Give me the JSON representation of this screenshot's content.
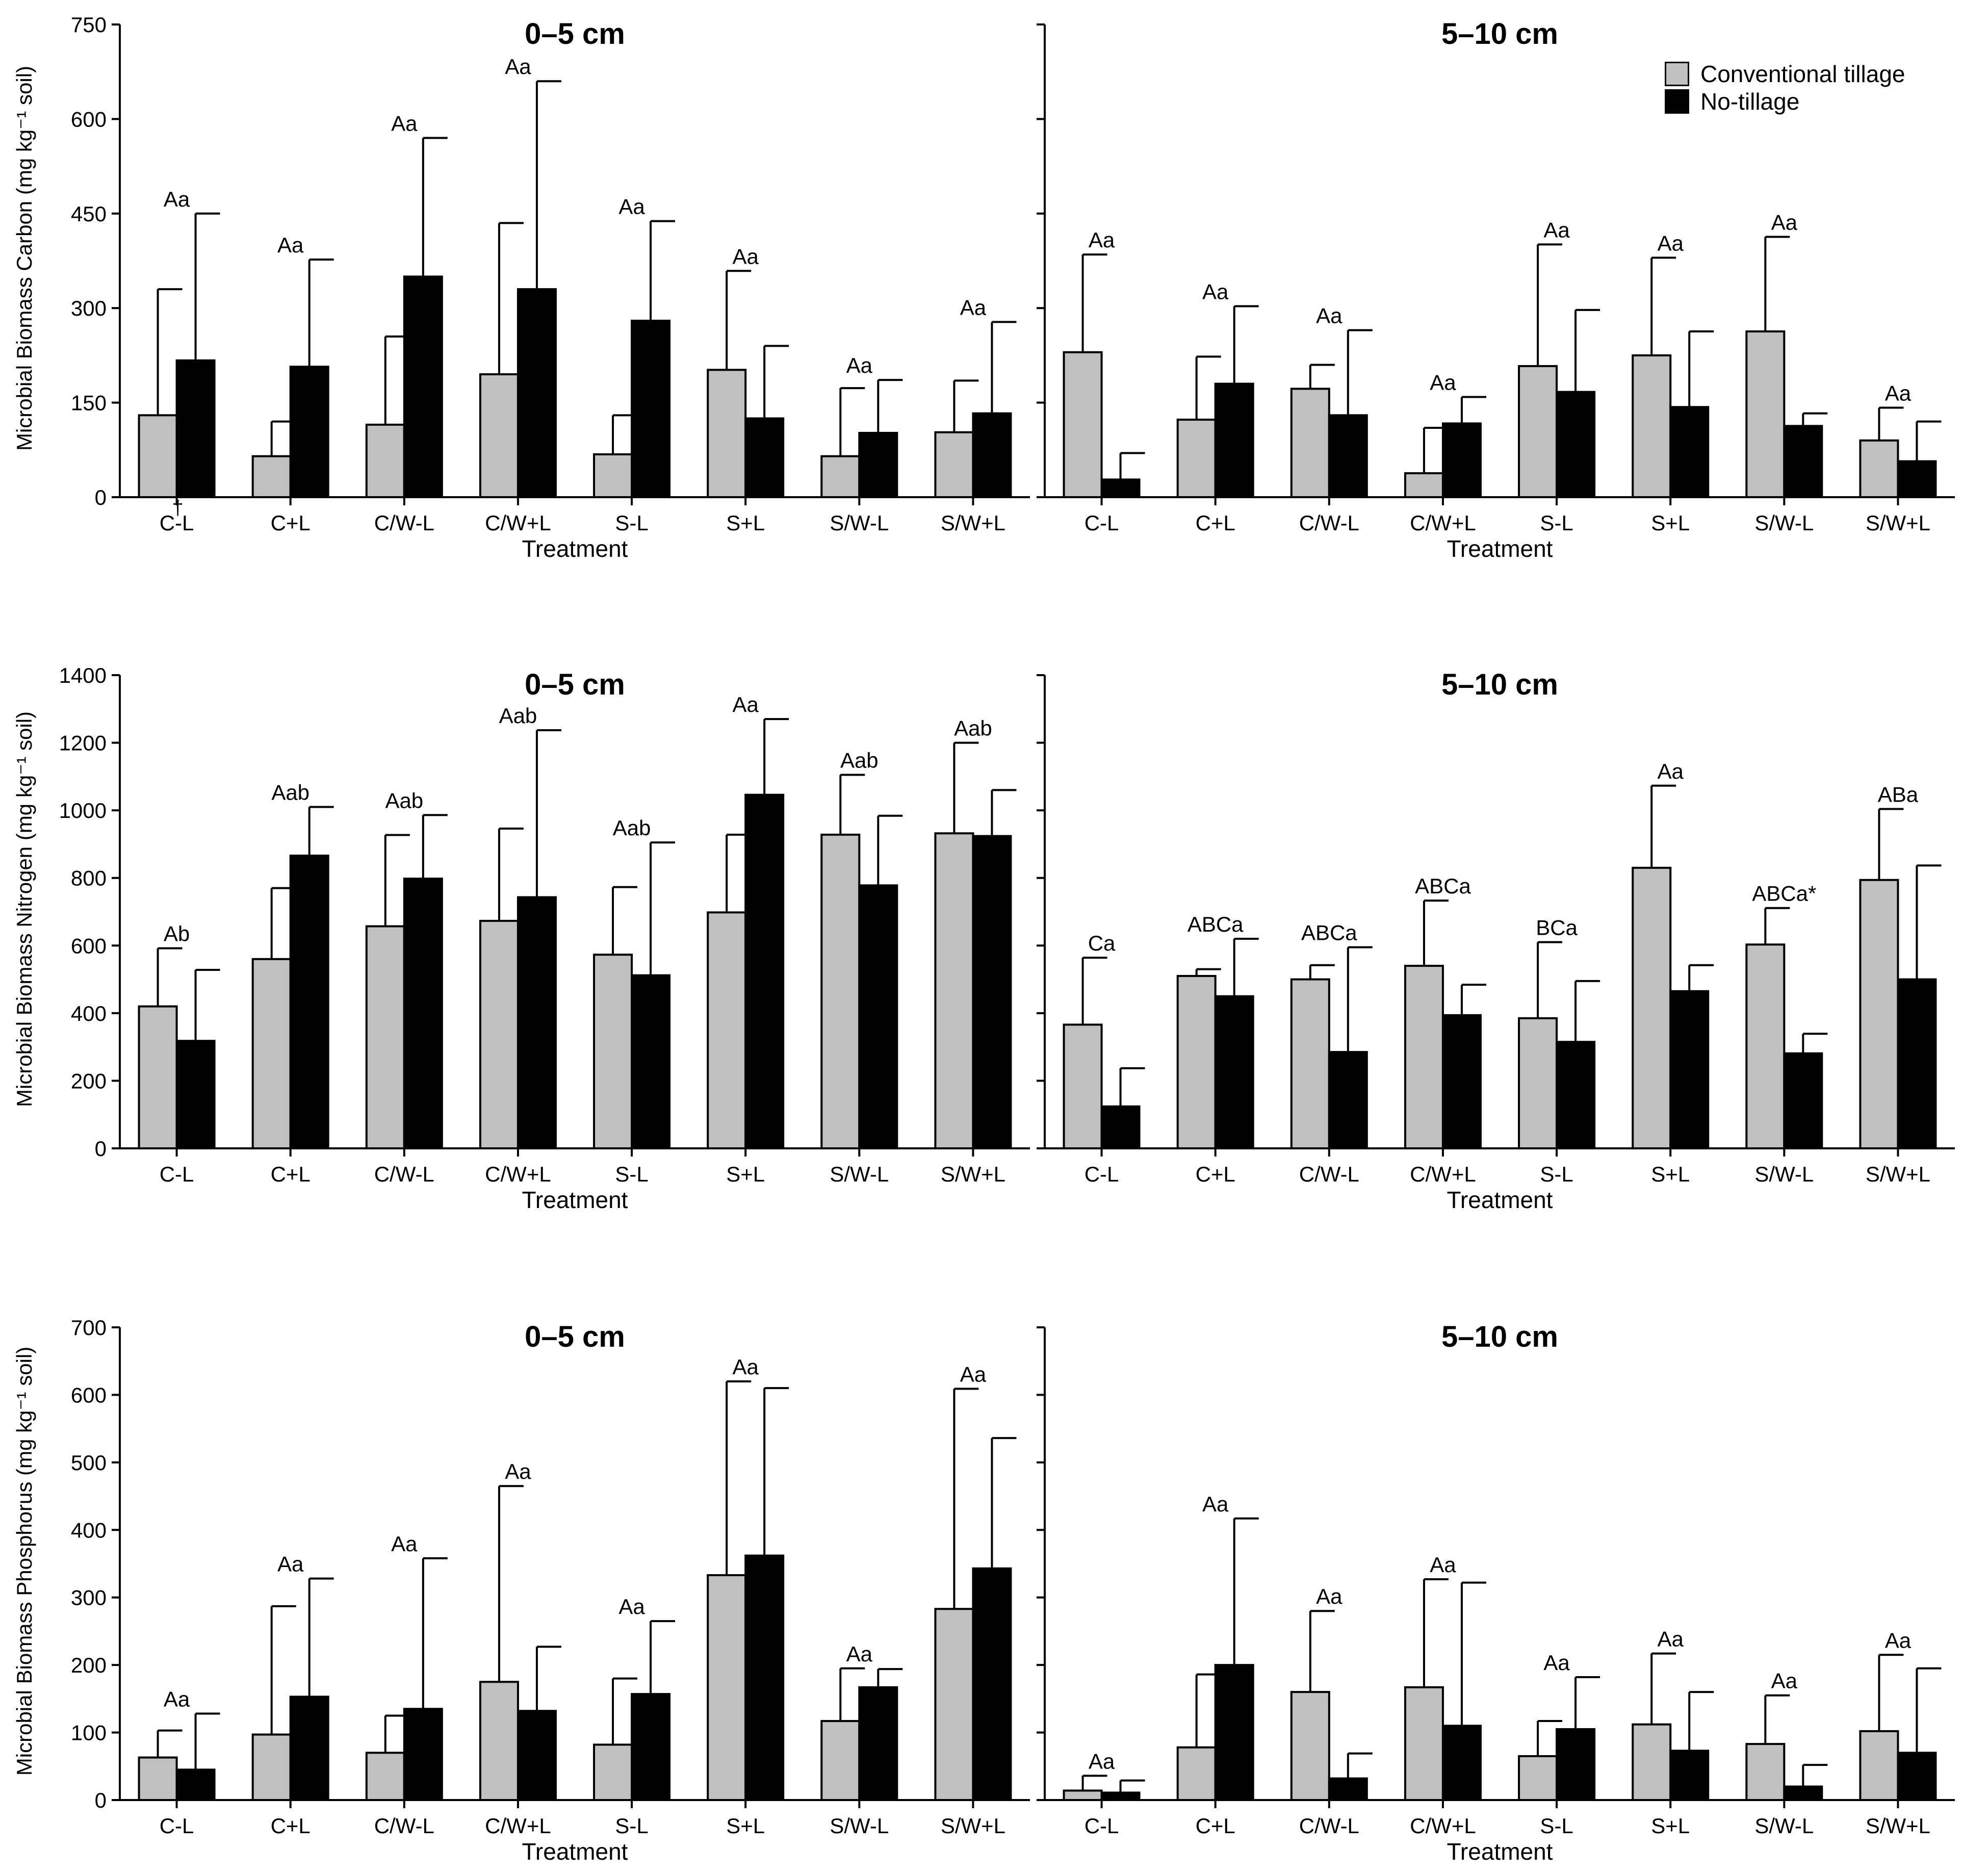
{
  "legend": {
    "items": [
      {
        "label": "Conventional tillage",
        "color": "#c0c0c0"
      },
      {
        "label": "No-tillage",
        "color": "#000000"
      }
    ]
  },
  "chart_data": [
    {
      "type": "bar",
      "title": "0–5 cm",
      "xlabel": "Treatment",
      "ylabel": "Microbial Biomass Carbon (mg kg⁻¹ soil)",
      "ylim": [
        0,
        750
      ],
      "yticks": [
        0,
        150,
        300,
        450,
        600,
        750
      ],
      "categories": [
        "C-L",
        "C+L",
        "C/W-L",
        "C/W+L",
        "S-L",
        "S+L",
        "S/W-L",
        "S/W+L"
      ],
      "series": [
        {
          "name": "Conventional tillage",
          "values": [
            130,
            65,
            115,
            195,
            68,
            202,
            65,
            103
          ],
          "errors": [
            200,
            55,
            140,
            240,
            62,
            157,
            108,
            82
          ]
        },
        {
          "name": "No-tillage",
          "values": [
            217,
            207,
            350,
            330,
            280,
            125,
            102,
            133
          ],
          "errors": [
            233,
            170,
            220,
            330,
            158,
            115,
            84,
            145
          ]
        }
      ],
      "annotations": [
        "Aa",
        "Aa",
        "Aa",
        "Aa",
        "Aa",
        "Aa",
        "Aa",
        "Aa"
      ],
      "footnote_mark": "†"
    },
    {
      "type": "bar",
      "title": "5–10 cm",
      "xlabel": "Treatment",
      "ylabel": "",
      "ylim": [
        0,
        750
      ],
      "yticks": [
        0,
        150,
        300,
        450,
        600,
        750
      ],
      "categories": [
        "C-L",
        "C+L",
        "C/W-L",
        "C/W+L",
        "S-L",
        "S+L",
        "S/W-L",
        "S/W+L"
      ],
      "series": [
        {
          "name": "Conventional tillage",
          "values": [
            230,
            123,
            172,
            38,
            208,
            225,
            263,
            90
          ],
          "errors": [
            155,
            100,
            38,
            72,
            193,
            155,
            150,
            52
          ]
        },
        {
          "name": "No-tillage",
          "values": [
            28,
            180,
            130,
            117,
            167,
            143,
            113,
            57
          ],
          "errors": [
            42,
            123,
            135,
            42,
            130,
            120,
            20,
            63
          ]
        }
      ],
      "annotations": [
        "Aa",
        "Aa",
        "Aa",
        "Aa",
        "Aa",
        "Aa",
        "Aa",
        "Aa"
      ]
    },
    {
      "type": "bar",
      "title": "0–5 cm",
      "xlabel": "Treatment",
      "ylabel": "Microbial Biomass Nitrogen (mg kg⁻¹ soil)",
      "ylim": [
        0,
        1400
      ],
      "yticks": [
        0,
        200,
        400,
        600,
        800,
        1000,
        1200,
        1400
      ],
      "categories": [
        "C-L",
        "C+L",
        "C/W-L",
        "C/W+L",
        "S-L",
        "S+L",
        "S/W-L",
        "S/W+L"
      ],
      "series": [
        {
          "name": "Conventional tillage",
          "values": [
            420,
            560,
            657,
            673,
            573,
            698,
            928,
            932
          ],
          "errors": [
            172,
            210,
            270,
            273,
            200,
            230,
            177,
            268
          ]
        },
        {
          "name": "No-tillage",
          "values": [
            318,
            866,
            798,
            743,
            512,
            1046,
            778,
            924
          ],
          "errors": [
            210,
            144,
            188,
            494,
            393,
            224,
            206,
            136
          ]
        }
      ],
      "annotations": [
        "Ab",
        "Aab",
        "Aab",
        "Aab",
        "Aab",
        "Aa",
        "Aab",
        "Aab"
      ]
    },
    {
      "type": "bar",
      "title": "5–10 cm",
      "xlabel": "Treatment",
      "ylabel": "",
      "ylim": [
        0,
        1400
      ],
      "yticks": [
        0,
        200,
        400,
        600,
        800,
        1000,
        1200,
        1400
      ],
      "categories": [
        "C-L",
        "C+L",
        "C/W-L",
        "C/W+L",
        "S-L",
        "S+L",
        "S/W-L",
        "S/W+L"
      ],
      "series": [
        {
          "name": "Conventional tillage",
          "values": [
            366,
            510,
            500,
            540,
            385,
            830,
            603,
            794
          ],
          "errors": [
            198,
            20,
            42,
            193,
            225,
            243,
            108,
            210
          ]
        },
        {
          "name": "No-tillage",
          "values": [
            124,
            450,
            285,
            394,
            315,
            465,
            281,
            500
          ],
          "errors": [
            113,
            170,
            310,
            90,
            180,
            77,
            58,
            337
          ]
        }
      ],
      "annotations": [
        "Ca",
        "ABCa",
        "ABCa",
        "ABCa",
        "BCa",
        "Aa",
        "ABCa*",
        "ABa"
      ]
    },
    {
      "type": "bar",
      "title": "0–5 cm",
      "xlabel": "Treatment",
      "ylabel": "Microbial Biomass Phosphorus (mg kg⁻¹ soil)",
      "ylim": [
        0,
        700
      ],
      "yticks": [
        0,
        100,
        200,
        300,
        400,
        500,
        600,
        700
      ],
      "categories": [
        "C-L",
        "C+L",
        "C/W-L",
        "C/W+L",
        "S-L",
        "S+L",
        "S/W-L",
        "S/W+L"
      ],
      "series": [
        {
          "name": "Conventional tillage",
          "values": [
            63,
            97,
            70,
            175,
            82,
            333,
            117,
            283
          ],
          "errors": [
            40,
            190,
            55,
            290,
            98,
            287,
            78,
            326
          ]
        },
        {
          "name": "No-tillage",
          "values": [
            45,
            153,
            135,
            132,
            157,
            362,
            167,
            343
          ],
          "errors": [
            83,
            175,
            223,
            95,
            108,
            248,
            27,
            193
          ]
        }
      ],
      "annotations": [
        "Aa",
        "Aa",
        "Aa",
        "Aa",
        "Aa",
        "Aa",
        "Aa",
        "Aa"
      ]
    },
    {
      "type": "bar",
      "title": "5–10 cm",
      "xlabel": "Treatment",
      "ylabel": "",
      "ylim": [
        0,
        700
      ],
      "yticks": [
        0,
        100,
        200,
        300,
        400,
        500,
        600,
        700
      ],
      "categories": [
        "C-L",
        "C+L",
        "C/W-L",
        "C/W+L",
        "S-L",
        "S+L",
        "S/W-L",
        "S/W+L"
      ],
      "series": [
        {
          "name": "Conventional tillage",
          "values": [
            14,
            78,
            160,
            167,
            65,
            112,
            83,
            102
          ],
          "errors": [
            22,
            108,
            120,
            160,
            52,
            105,
            72,
            113
          ]
        },
        {
          "name": "No-tillage",
          "values": [
            11,
            200,
            32,
            110,
            105,
            73,
            20,
            70
          ],
          "errors": [
            18,
            217,
            37,
            212,
            77,
            87,
            32,
            125
          ]
        }
      ],
      "annotations": [
        "Aa",
        "Aa",
        "Aa",
        "Aa",
        "Aa",
        "Aa",
        "Aa",
        "Aa"
      ]
    }
  ]
}
